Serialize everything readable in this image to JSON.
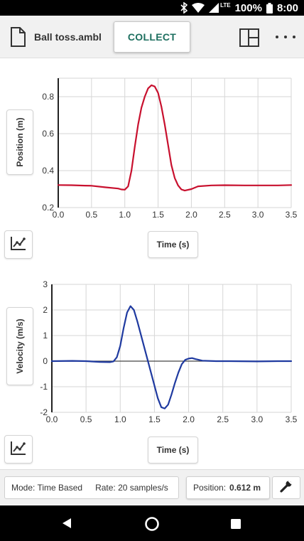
{
  "status": {
    "battery": "100%",
    "time": "8:00",
    "network": "LTE"
  },
  "toolbar": {
    "file_name": "Ball toss.ambl",
    "collect_label": "COLLECT"
  },
  "graphs": [
    {
      "y_label": "Position (m)",
      "x_label": "Time (s)",
      "line_color": "#c8102e"
    },
    {
      "y_label": "Velocity (m/s)",
      "x_label": "Time (s)",
      "line_color": "#1f3aa0"
    }
  ],
  "footer": {
    "mode": "Mode: Time Based",
    "rate": "Rate: 20 samples/s",
    "position_label": "Position:",
    "position_value": "0.612 m"
  },
  "icons": {
    "file": "file-icon",
    "layout": "layout-icon",
    "more": "more-vert-icon",
    "axis_autoscale": "autoscale-icon",
    "wrench": "wrench-icon",
    "back": "back-icon",
    "home": "home-icon",
    "recent": "recent-apps-icon",
    "bluetooth": "bluetooth-icon",
    "wifi": "wifi-icon",
    "signal": "signal-icon",
    "battery": "battery-icon"
  },
  "chart_data": [
    {
      "type": "line",
      "xlabel": "Time (s)",
      "ylabel": "Position (m)",
      "xlim": [
        0.0,
        3.5
      ],
      "ylim": [
        0.2,
        0.9
      ],
      "x_ticks": [
        "0.0",
        "0.5",
        "1.0",
        "1.5",
        "2.0",
        "2.5",
        "3.0",
        "3.5"
      ],
      "y_ticks": [
        "0.2",
        "0.4",
        "0.6",
        "0.8"
      ],
      "grid": true,
      "series": [
        {
          "x": [
            0.0,
            0.2,
            0.4,
            0.5,
            0.7,
            0.9,
            0.95,
            1.0,
            1.05,
            1.1,
            1.15,
            1.2,
            1.25,
            1.3,
            1.35,
            1.4,
            1.45,
            1.5,
            1.55,
            1.6,
            1.65,
            1.7,
            1.75,
            1.8,
            1.85,
            1.9,
            2.0,
            2.1,
            2.3,
            2.5,
            2.8,
            3.0,
            3.3,
            3.5
          ],
          "y": [
            0.322,
            0.321,
            0.319,
            0.318,
            0.31,
            0.303,
            0.298,
            0.297,
            0.315,
            0.4,
            0.53,
            0.65,
            0.74,
            0.8,
            0.845,
            0.862,
            0.855,
            0.82,
            0.745,
            0.65,
            0.54,
            0.43,
            0.36,
            0.32,
            0.298,
            0.292,
            0.3,
            0.315,
            0.32,
            0.321,
            0.32,
            0.32,
            0.32,
            0.322
          ]
        }
      ]
    },
    {
      "type": "line",
      "xlabel": "Time (s)",
      "ylabel": "Velocity (m/s)",
      "xlim": [
        0.0,
        3.5
      ],
      "ylim": [
        -2,
        3
      ],
      "x_ticks": [
        "0.0",
        "0.5",
        "1.0",
        "1.5",
        "2.0",
        "2.5",
        "3.0",
        "3.5"
      ],
      "y_ticks": [
        "-2",
        "-1",
        "0",
        "1",
        "2",
        "3"
      ],
      "grid": true,
      "series": [
        {
          "x": [
            0.0,
            0.3,
            0.5,
            0.7,
            0.85,
            0.9,
            0.95,
            1.0,
            1.05,
            1.1,
            1.15,
            1.2,
            1.25,
            1.3,
            1.35,
            1.4,
            1.45,
            1.5,
            1.55,
            1.6,
            1.65,
            1.7,
            1.75,
            1.8,
            1.85,
            1.9,
            1.95,
            2.0,
            2.05,
            2.1,
            2.2,
            2.4,
            2.6,
            3.0,
            3.3,
            3.5
          ],
          "y": [
            0.0,
            0.01,
            0.0,
            -0.03,
            -0.04,
            -0.01,
            0.15,
            0.6,
            1.3,
            1.9,
            2.15,
            2.0,
            1.55,
            1.05,
            0.55,
            0.05,
            -0.45,
            -0.95,
            -1.45,
            -1.8,
            -1.85,
            -1.7,
            -1.3,
            -0.85,
            -0.45,
            -0.12,
            0.05,
            0.1,
            0.12,
            0.08,
            0.02,
            0.0,
            0.0,
            -0.01,
            0.0,
            0.0
          ]
        }
      ]
    }
  ]
}
